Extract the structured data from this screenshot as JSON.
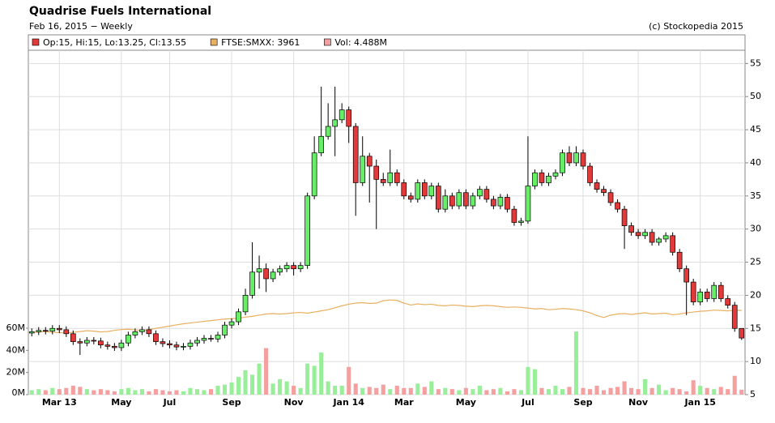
{
  "chart_data": {
    "type": "candlestick",
    "title": "Quadrise Fuels International",
    "subtitle": "Feb 16, 2015 − Weekly",
    "source": "(c) Stockopedia 2015",
    "categories": [
      null,
      null,
      null,
      null,
      "Mar 13",
      null,
      null,
      null,
      null,
      null,
      null,
      null,
      null,
      "May",
      null,
      null,
      null,
      null,
      null,
      null,
      "Jul",
      null,
      null,
      null,
      null,
      null,
      null,
      null,
      null,
      "Sep",
      null,
      null,
      null,
      null,
      null,
      null,
      null,
      null,
      "Nov",
      null,
      null,
      null,
      null,
      null,
      null,
      null,
      "Jan 14",
      null,
      null,
      null,
      null,
      null,
      null,
      null,
      "Mar",
      null,
      null,
      null,
      null,
      null,
      null,
      null,
      null,
      "May",
      null,
      null,
      null,
      null,
      null,
      null,
      null,
      null,
      "Jul",
      null,
      null,
      null,
      null,
      null,
      null,
      null,
      "Sep",
      null,
      null,
      null,
      null,
      null,
      null,
      null,
      "Nov",
      null,
      null,
      null,
      null,
      null,
      null,
      null,
      null,
      "Jan 15",
      null,
      null,
      null,
      null,
      null,
      null
    ],
    "series": [
      {
        "name": "Op:15, Hi:15, Lo:13.25, Cl:13.55",
        "color": "#e23a3a",
        "up_color": "#66ee66",
        "open": [
          14.3,
          14.5,
          14.7,
          14.6,
          15,
          14.8,
          14.2,
          13,
          12.8,
          13.2,
          13.1,
          12.5,
          12.3,
          12.1,
          12.8,
          14,
          14.5,
          14.8,
          14.2,
          13,
          12.7,
          12.5,
          12.2,
          12.3,
          12.8,
          13.2,
          13.5,
          13.4,
          14,
          15.5,
          16,
          17.5,
          20,
          23.5,
          24,
          22.5,
          23.5,
          24,
          24.5,
          24,
          24.5,
          35,
          41.5,
          44,
          45.5,
          46.5,
          48,
          45.5,
          37,
          41,
          39.5,
          37.5,
          37,
          38.5,
          37,
          35,
          34.5,
          37,
          35,
          36.5,
          33,
          35,
          33.5,
          35.5,
          33.5,
          35,
          36,
          34.5,
          33.5,
          34.8,
          33,
          31,
          31.2,
          36.5,
          38.5,
          37,
          38,
          38.5,
          41.5,
          40,
          41.5,
          39.5,
          37,
          36,
          35.5,
          34,
          33,
          30.5,
          29.5,
          29,
          29.5,
          28,
          28.5,
          29,
          26.5,
          24,
          22,
          19,
          20.5,
          19.5,
          21.5,
          19.5,
          18.5,
          15
        ],
        "high": [
          15,
          15.2,
          15.2,
          15.5,
          15.5,
          15.3,
          14.7,
          13.5,
          13.7,
          13.7,
          13.6,
          13,
          12.8,
          13.3,
          14.5,
          15,
          15.3,
          15.3,
          14.7,
          13.5,
          13.2,
          13,
          12.8,
          13.3,
          13.7,
          14,
          14,
          14.5,
          16,
          16.5,
          18,
          21,
          28,
          26,
          24.8,
          24,
          24.5,
          25,
          25,
          25,
          35.5,
          44,
          51.5,
          49,
          51.5,
          49,
          48.5,
          46,
          44,
          41.5,
          40.5,
          38.5,
          42,
          39,
          37.5,
          35.5,
          37.5,
          37.5,
          37,
          37,
          36,
          35.5,
          36,
          36,
          35.5,
          36.5,
          36.5,
          35,
          35.3,
          35.3,
          33.5,
          31.7,
          44,
          39,
          39,
          38.5,
          39,
          42,
          42.5,
          42.5,
          42,
          40,
          37.5,
          36.5,
          36,
          34.5,
          33.5,
          31,
          30,
          30,
          30,
          28.8,
          29.5,
          29.5,
          27,
          24.5,
          22.5,
          21,
          21,
          22,
          22,
          20,
          19,
          15
        ],
        "low": [
          13.8,
          14,
          14.1,
          14.1,
          14.3,
          13.7,
          12.5,
          11,
          12.3,
          12.6,
          12,
          11.8,
          11.6,
          11.6,
          12.3,
          13.5,
          14,
          13.7,
          12.5,
          12.2,
          12,
          11.7,
          11.7,
          11.8,
          12.3,
          12.7,
          13,
          12.9,
          13.5,
          15,
          15.5,
          17,
          19.5,
          21,
          20.5,
          22,
          23,
          23.5,
          23,
          23.5,
          24,
          34.5,
          41,
          43.5,
          41,
          46,
          43,
          32,
          36.5,
          34,
          30,
          36.5,
          36.5,
          36.5,
          34.5,
          34,
          34,
          34.5,
          34.5,
          32.5,
          32.5,
          33,
          33,
          33,
          33,
          34.5,
          34,
          33,
          33,
          32.5,
          30.5,
          30.5,
          30.8,
          36,
          36.5,
          36.5,
          37.5,
          38,
          39.5,
          39.5,
          39,
          36.5,
          35.5,
          35,
          33.5,
          32.5,
          27,
          29,
          28.5,
          28.5,
          27.5,
          27.5,
          28,
          26,
          23.5,
          17,
          18.5,
          18.5,
          19,
          19,
          19,
          18,
          14.5,
          13.25
        ],
        "close": [
          14.5,
          14.7,
          14.6,
          15,
          14.8,
          14.2,
          13,
          12.8,
          13.2,
          13.1,
          12.5,
          12.3,
          12.1,
          12.8,
          14,
          14.5,
          14.8,
          14.2,
          13,
          12.7,
          12.5,
          12.2,
          12.3,
          12.8,
          13.2,
          13.5,
          13.4,
          14,
          15.5,
          16,
          17.5,
          20,
          23.5,
          24,
          22.5,
          23.5,
          24,
          24.5,
          24,
          24.5,
          35,
          41.5,
          44,
          45.5,
          46.5,
          48,
          45.5,
          37,
          41,
          39.5,
          37.5,
          37,
          38.5,
          37,
          35,
          34.5,
          37,
          35,
          36.5,
          33,
          35,
          33.5,
          35.5,
          33.5,
          35,
          36,
          34.5,
          33.5,
          34.8,
          33,
          31,
          31.2,
          36.5,
          38.5,
          37,
          38,
          38.5,
          41.5,
          40,
          41.5,
          39.5,
          37,
          36,
          35.5,
          34,
          33,
          30.5,
          29.5,
          29,
          29.5,
          28,
          28.5,
          29,
          26.5,
          24,
          22,
          19,
          20.5,
          19.5,
          21.5,
          19.5,
          18.5,
          15,
          13.55
        ]
      },
      {
        "name": "FTSE:SMXX: 3961",
        "color": "#e8b060",
        "axis": "y3",
        "values": [
          3400,
          3410,
          3420,
          3400,
          3390,
          3380,
          3400,
          3420,
          3440,
          3430,
          3410,
          3420,
          3450,
          3470,
          3480,
          3460,
          3450,
          3470,
          3500,
          3530,
          3560,
          3590,
          3620,
          3640,
          3660,
          3680,
          3700,
          3720,
          3740,
          3750,
          3760,
          3790,
          3810,
          3840,
          3870,
          3880,
          3870,
          3880,
          3900,
          3910,
          3890,
          3920,
          3950,
          3980,
          4030,
          4080,
          4120,
          4150,
          4160,
          4140,
          4150,
          4210,
          4230,
          4220,
          4150,
          4100,
          4130,
          4110,
          4120,
          4090,
          4080,
          4100,
          4090,
          4070,
          4060,
          4080,
          4090,
          4080,
          4060,
          4040,
          4050,
          4040,
          4020,
          4000,
          4010,
          3980,
          3990,
          4010,
          4000,
          3980,
          3950,
          3900,
          3830,
          3780,
          3840,
          3870,
          3880,
          3860,
          3880,
          3900,
          3870,
          3880,
          3890,
          3850,
          3870,
          3900,
          3920,
          3940,
          3950,
          3970,
          3960,
          3950,
          3970,
          3961
        ]
      },
      {
        "name": "Vol: 4.488M",
        "color": "#f4a0a0",
        "up_color": "#99ee99",
        "axis": "y2",
        "values": [
          4,
          5,
          4,
          6,
          5,
          6,
          8,
          7,
          5,
          4,
          5,
          4,
          3,
          5,
          6,
          4,
          5,
          3,
          5,
          4,
          3,
          4,
          3,
          6,
          5,
          4,
          5,
          8,
          9,
          11,
          16,
          22,
          18,
          28,
          42,
          10,
          14,
          12,
          8,
          6,
          28,
          26,
          38,
          12,
          8,
          8,
          25,
          10,
          6,
          7,
          6,
          9,
          5,
          8,
          6,
          6,
          10,
          7,
          12,
          5,
          6,
          5,
          4,
          6,
          5,
          8,
          4,
          5,
          6,
          3,
          5,
          4,
          25,
          23,
          6,
          5,
          8,
          5,
          7,
          57,
          6,
          5,
          8,
          4,
          6,
          7,
          12,
          6,
          5,
          14,
          6,
          9,
          4,
          6,
          5,
          3,
          13,
          8,
          6,
          5,
          7,
          5,
          17,
          4.488
        ]
      }
    ],
    "ylim": [
      5,
      57
    ],
    "yticks": [
      5,
      10,
      15,
      20,
      25,
      30,
      35,
      40,
      45,
      50,
      55
    ],
    "y2lim": [
      0,
      311
    ],
    "y2ticks": [
      {
        "value": 0,
        "label": "0M"
      },
      {
        "value": 20,
        "label": "20M"
      },
      {
        "value": 40,
        "label": "40M"
      },
      {
        "value": 60,
        "label": "60M"
      }
    ],
    "y3lim": [
      1800,
      10640
    ],
    "grid": true
  }
}
